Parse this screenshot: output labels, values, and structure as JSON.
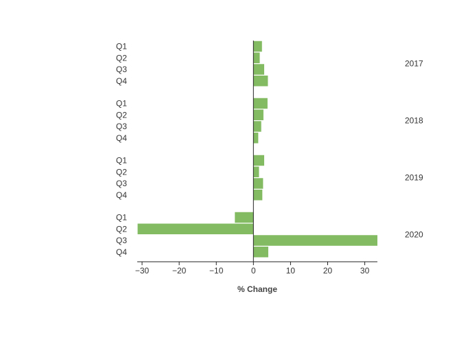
{
  "chart_data": {
    "type": "bar",
    "orientation": "horizontal",
    "xlabel": "% Change",
    "xlim": [
      -31.3,
      33.4
    ],
    "xticks": [
      -30,
      -20,
      -10,
      0,
      10,
      20,
      30
    ],
    "xtick_labels": [
      "−30",
      "−20",
      "−10",
      "0",
      "10",
      "20",
      "30"
    ],
    "bar_color": "#82bb62",
    "grid": false,
    "groups": [
      {
        "label": "2017",
        "categories": [
          "Q1",
          "Q2",
          "Q3",
          "Q4"
        ],
        "values": [
          2.3,
          1.7,
          2.9,
          3.9
        ]
      },
      {
        "label": "2018",
        "categories": [
          "Q1",
          "Q2",
          "Q3",
          "Q4"
        ],
        "values": [
          3.8,
          2.7,
          2.1,
          1.3
        ]
      },
      {
        "label": "2019",
        "categories": [
          "Q1",
          "Q2",
          "Q3",
          "Q4"
        ],
        "values": [
          2.9,
          1.5,
          2.6,
          2.4
        ]
      },
      {
        "label": "2020",
        "categories": [
          "Q1",
          "Q2",
          "Q3",
          "Q4"
        ],
        "values": [
          -5.0,
          -31.2,
          33.4,
          4.0
        ]
      }
    ]
  }
}
